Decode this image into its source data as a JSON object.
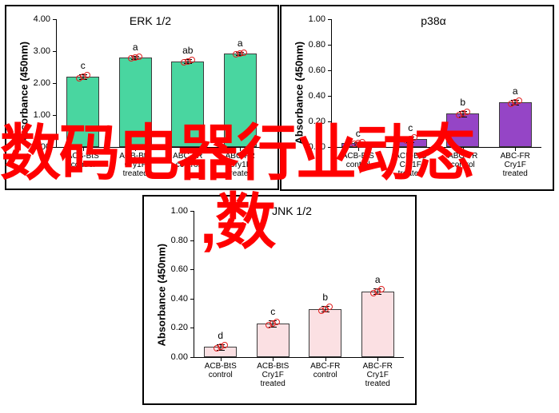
{
  "charts": {
    "erk": {
      "title": "ERK 1/2",
      "ylabel": "Absorbance (450nm)",
      "type": "bar",
      "ylim": [
        0,
        4.0
      ],
      "ytick_step": 1.0,
      "categories": [
        "ACB-BtS\ncontrol",
        "ACB-BtS\nCry1F\ntreated",
        "ABC-FR\ncontrol",
        "ABC-FR\nCry1F\ntreated"
      ],
      "values": [
        2.2,
        2.8,
        2.68,
        2.93
      ],
      "errors": [
        0.08,
        0.06,
        0.06,
        0.05
      ],
      "sig": [
        "c",
        "a",
        "ab",
        "a"
      ],
      "bar_color": "#49d6a0",
      "bar_border": "#3c3c3c",
      "point_color": "#e02020",
      "title_fontsize": 14,
      "label_fontsize": 13,
      "decimals": 2
    },
    "p38": {
      "title": "p38α",
      "ylabel": "Absorbance (450nm)",
      "type": "bar",
      "ylim": [
        0,
        1.0
      ],
      "ytick_step": 0.2,
      "categories": [
        "ACB-BtS\ncontrol",
        "ACB-BtS\nCry1F\ntreated",
        "ABC-FR\ncontrol",
        "ABC-FR\nCry1F\ntreated"
      ],
      "values": [
        0.03,
        0.06,
        0.26,
        0.35
      ],
      "errors": [
        0.01,
        0.02,
        0.02,
        0.02
      ],
      "sig": [
        "c",
        "c",
        "b",
        "a"
      ],
      "bar_color": "#9545c6",
      "bar_border": "#3c3c3c",
      "point_color": "#e02020",
      "title_fontsize": 14,
      "label_fontsize": 13,
      "decimals": 2
    },
    "jnk": {
      "title": "JNK 1/2",
      "ylabel": "Absorbance (450nm)",
      "type": "bar",
      "ylim": [
        0,
        1.0
      ],
      "ytick_step": 0.2,
      "categories": [
        "ACB-BtS\ncontrol",
        "ACB-BtS\nCry1F\ntreated",
        "ABC-FR\ncontrol",
        "ABC-FR\nCry1F\ntreated"
      ],
      "values": [
        0.07,
        0.23,
        0.33,
        0.45
      ],
      "errors": [
        0.02,
        0.02,
        0.02,
        0.02
      ],
      "sig": [
        "d",
        "c",
        "b",
        "a"
      ],
      "bar_color": "#fbe0e3",
      "bar_border": "#3c3c3c",
      "point_color": "#e02020",
      "title_fontsize": 14,
      "label_fontsize": 13,
      "decimals": 2
    }
  },
  "overlay": {
    "line1": "数码电器行业动态",
    "line2": ",数",
    "color": "#ff0000",
    "fontsize_line1": 76,
    "fontsize_line2": 76
  }
}
